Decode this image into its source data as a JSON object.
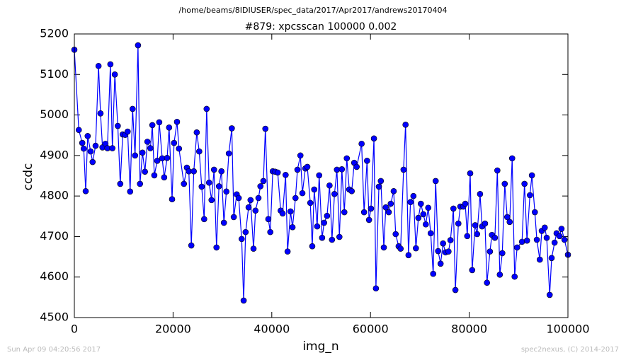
{
  "chart_data": {
    "type": "line",
    "suptitle": "/home/beams/8IDIUSER/spec_data/2017/Apr2017/andrews20170404",
    "title": "#879: xpcsscan 100000 0.002",
    "xlabel": "img_n",
    "ylabel": "ccdc",
    "footer_left": "Sun Apr 09 04:20:56 2017",
    "footer_right": "spec2nexus, (C) 2014-2017",
    "color": "#0000ff",
    "xlim": [
      0,
      100000
    ],
    "xticks": [
      0,
      20000,
      40000,
      60000,
      80000,
      100000
    ],
    "ylim": [
      4500,
      5200
    ],
    "yticks": [
      4500,
      4600,
      4700,
      4800,
      4900,
      5000,
      5100,
      5200
    ],
    "grid": false,
    "x": [
      0,
      900,
      1600,
      1900,
      2300,
      2700,
      3300,
      3700,
      4300,
      4900,
      5300,
      5700,
      6300,
      6700,
      7300,
      7700,
      8200,
      8800,
      9300,
      9800,
      10300,
      10800,
      11300,
      11800,
      12300,
      12900,
      13300,
      13800,
      14300,
      14800,
      15400,
      15800,
      16200,
      16800,
      17200,
      17800,
      18200,
      18800,
      19200,
      19800,
      20200,
      20800,
      21200,
      22200,
      22800,
      23200,
      23700,
      24200,
      24800,
      25300,
      25800,
      26300,
      26800,
      27300,
      27800,
      28300,
      28800,
      29300,
      29800,
      30300,
      30800,
      31300,
      31900,
      32300,
      32900,
      33300,
      33900,
      34300,
      34700,
      35300,
      35700,
      36300,
      36700,
      37300,
      37700,
      38300,
      38700,
      39300,
      39700,
      40200,
      40700,
      41200,
      41800,
      42200,
      42800,
      43200,
      43800,
      44200,
      44800,
      45200,
      45800,
      46200,
      46800,
      47200,
      47800,
      48200,
      48600,
      49200,
      49600,
      50200,
      50600,
      51200,
      51700,
      52200,
      52700,
      53200,
      53700,
      54200,
      54700,
      55200,
      55700,
      56200,
      56700,
      57200,
      58200,
      58700,
      59300,
      59700,
      60100,
      60700,
      61100,
      61700,
      62100,
      62700,
      63100,
      63700,
      64100,
      64700,
      65100,
      65700,
      66100,
      66700,
      67100,
      67700,
      68100,
      68700,
      69200,
      69700,
      70200,
      70700,
      71200,
      71700,
      72200,
      72700,
      73200,
      73700,
      74200,
      74700,
      75200,
      75800,
      76200,
      76800,
      77200,
      77800,
      78200,
      78800,
      79200,
      79600,
      80200,
      80600,
      81200,
      81600,
      82200,
      82600,
      83200,
      83600,
      84200,
      84600,
      85200,
      85700,
      86200,
      86700,
      87200,
      87700,
      88200,
      88700,
      89200,
      89700,
      90700,
      91200,
      91700,
      92300,
      92700,
      93300,
      93700,
      94300,
      94700,
      95300,
      95700,
      96300,
      96700,
      97300,
      97700,
      98300,
      98700,
      99300,
      100000
    ],
    "values": [
      5161,
      4963,
      4931,
      4917,
      4812,
      4948,
      4910,
      4884,
      4924,
      5121,
      5004,
      4920,
      4929,
      4918,
      5125,
      4918,
      5100,
      4973,
      4830,
      4952,
      4951,
      4959,
      4811,
      5015,
      4900,
      5172,
      4830,
      4907,
      4860,
      4934,
      4918,
      4975,
      4851,
      4887,
      4982,
      4893,
      4846,
      4894,
      4969,
      4792,
      4931,
      4983,
      4917,
      4830,
      4870,
      4861,
      4678,
      4861,
      4957,
      4910,
      4823,
      4743,
      5015,
      4833,
      4790,
      4865,
      4673,
      4824,
      4861,
      4734,
      4811,
      4905,
      4967,
      4748,
      4804,
      4795,
      4694,
      4542,
      4711,
      4772,
      4790,
      4670,
      4764,
      4795,
      4824,
      4837,
      4966,
      4743,
      4711,
      4861,
      4860,
      4858,
      4764,
      4757,
      4852,
      4663,
      4762,
      4723,
      4795,
      4865,
      4900,
      4807,
      4868,
      4872,
      4783,
      4676,
      4816,
      4725,
      4851,
      4697,
      4734,
      4751,
      4826,
      4692,
      4805,
      4865,
      4699,
      4866,
      4760,
      4893,
      4816,
      4812,
      4882,
      4872,
      4929,
      4760,
      4887,
      4741,
      4769,
      4942,
      4572,
      4823,
      4837,
      4673,
      4772,
      4760,
      4781,
      4812,
      4706,
      4676,
      4670,
      4865,
      4976,
      4654,
      4785,
      4800,
      4671,
      4746,
      4781,
      4755,
      4730,
      4771,
      4708,
      4608,
      4837,
      4664,
      4633,
      4683,
      4661,
      4663,
      4691,
      4769,
      4568,
      4732,
      4774,
      4774,
      4781,
      4701,
      4856,
      4617,
      4728,
      4706,
      4805,
      4725,
      4732,
      4586,
      4663,
      4704,
      4697,
      4863,
      4606,
      4659,
      4830,
      4748,
      4736,
      4893,
      4601,
      4673,
      4687,
      4830,
      4690,
      4802,
      4851,
      4760,
      4692,
      4643,
      4714,
      4722,
      4697,
      4556,
      4647,
      4685,
      4708,
      4701,
      4719,
      4692,
      4655
    ]
  }
}
